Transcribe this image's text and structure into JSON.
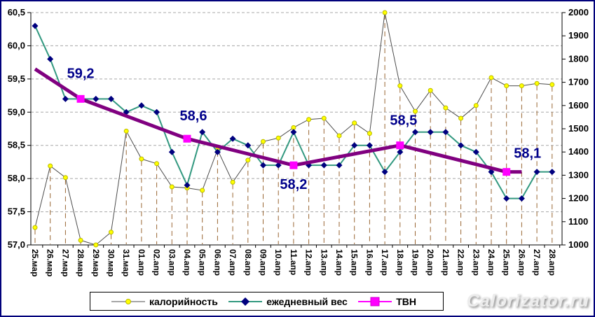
{
  "chart_data": {
    "type": "line",
    "x": [
      "25.мар",
      "26.мар",
      "27.мар",
      "28.мар",
      "29.мар",
      "30.мар",
      "31.мар",
      "01.апр",
      "02.апр",
      "03.апр",
      "04.апр",
      "05.апр",
      "06.апр",
      "07.апр",
      "08.апр",
      "09.апр",
      "10.апр",
      "11.апр",
      "12.апр",
      "13.апр",
      "14.апр",
      "15.апр",
      "16.апр",
      "17.апр",
      "18.апр",
      "19.апр",
      "20.апр",
      "21.апр",
      "22.апр",
      "23.апр",
      "24.апр",
      "25.апр",
      "26.апр",
      "27.апр",
      "28.апр"
    ],
    "series": [
      {
        "name": "калорийность",
        "axis": "right",
        "values": [
          1075,
          1340,
          1290,
          1020,
          1000,
          1055,
          1490,
          1370,
          1350,
          1250,
          1245,
          1235,
          1410,
          1270,
          1365,
          1445,
          1460,
          1505,
          1540,
          1545,
          1470,
          1525,
          1480,
          2000,
          1685,
          1575,
          1665,
          1590,
          1545,
          1600,
          1720,
          1685,
          1685,
          1695,
          1690
        ]
      },
      {
        "name": "ежедневный вес",
        "axis": "left",
        "values": [
          60.3,
          59.8,
          59.2,
          59.2,
          59.2,
          59.2,
          59.0,
          59.1,
          59.0,
          58.4,
          57.9,
          58.7,
          58.4,
          58.6,
          58.5,
          58.2,
          58.2,
          58.7,
          58.2,
          58.2,
          58.2,
          58.5,
          58.5,
          58.1,
          58.4,
          58.7,
          58.7,
          58.7,
          58.5,
          58.4,
          58.1,
          57.7,
          57.7,
          58.1,
          58.1
        ]
      },
      {
        "name": "ТВН",
        "axis": "left",
        "line_points": [
          {
            "i": 0,
            "v": 59.65
          },
          {
            "i": 3,
            "v": 59.2
          },
          {
            "i": 10,
            "v": 58.6
          },
          {
            "i": 17,
            "v": 58.2
          },
          {
            "i": 24,
            "v": 58.5
          },
          {
            "i": 31,
            "v": 58.1
          },
          {
            "i": 32,
            "v": 58.1
          }
        ],
        "markers": [
          {
            "i": 3,
            "v": 59.2,
            "label": "59,2",
            "dx": 0,
            "dy": -30
          },
          {
            "i": 10,
            "v": 58.6,
            "label": "58,6",
            "dx": 9,
            "dy": -26
          },
          {
            "i": 17,
            "v": 58.2,
            "label": "58,2",
            "dx": 0,
            "dy": 34
          },
          {
            "i": 24,
            "v": 58.5,
            "label": "58,5",
            "dx": 5,
            "dy": -29
          },
          {
            "i": 31,
            "v": 58.1,
            "label": "58,1",
            "dx": 30,
            "dy": -20
          }
        ]
      }
    ],
    "left_axis": {
      "min": 57.0,
      "max": 60.5,
      "step": 0.5,
      "tick_labels": [
        "60,5",
        "60,0",
        "59,5",
        "59,0",
        "58,5",
        "58,0",
        "57,5",
        "57,0"
      ]
    },
    "right_axis": {
      "min": 1000,
      "max": 2000,
      "step": 100,
      "tick_labels": [
        "2000",
        "1900",
        "1800",
        "1700",
        "1600",
        "1500",
        "1400",
        "1300",
        "1200",
        "1100",
        "1000"
      ]
    },
    "title": "",
    "xlabel": "",
    "ylabel": "",
    "grid": "horizontal-dashed",
    "drop_lines": true,
    "legend_position": "bottom"
  },
  "legend": {
    "calories": "калорийность",
    "weight": "ежедневный вес",
    "tvn": "ТВН"
  },
  "watermark": {
    "text": "Calorizator.ru"
  },
  "colors": {
    "frame_border": "#00007b",
    "calorie_line": "#4d4d4d",
    "calorie_marker": "#ffff00",
    "calorie_marker_edge": "#b9b900",
    "weight_line": "#339980",
    "weight_marker": "#00007f",
    "tvn_line": "#800080",
    "tvn_marker": "#ff00ff",
    "drop_line": "#996633",
    "gridline": "#a8a8a8",
    "axis": "#000000",
    "data_label": "#00008b"
  }
}
